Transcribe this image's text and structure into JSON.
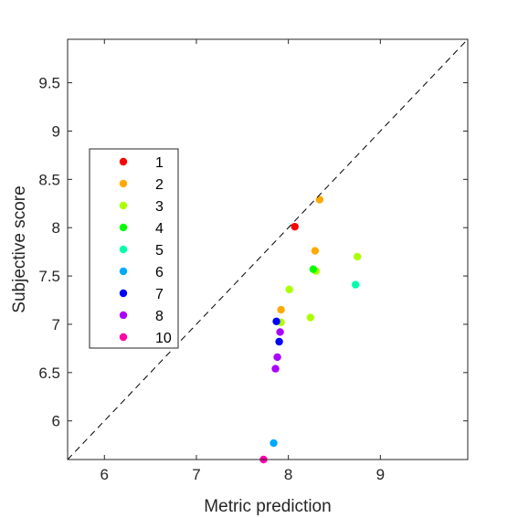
{
  "chart_data": {
    "type": "scatter",
    "xlabel": "Metric prediction",
    "ylabel": "Subjective score",
    "xlim": [
      5.6,
      9.95
    ],
    "ylim": [
      5.6,
      9.95
    ],
    "xticks": [
      6,
      7,
      8,
      9
    ],
    "yticks": [
      6,
      6.5,
      7,
      7.5,
      8,
      8.5,
      9,
      9.5
    ],
    "tick_labels_x": [
      "6",
      "7",
      "8",
      "9"
    ],
    "tick_labels_y": [
      "6",
      "6.5",
      "7",
      "7.5",
      "8",
      "8.5",
      "9",
      "9.5"
    ],
    "grid": false,
    "reference_line": "y = x (dashed)",
    "legend_position": "left",
    "series": [
      {
        "name": "1",
        "color": "#ff0000",
        "points": [
          [
            8.07,
            8.01
          ]
        ]
      },
      {
        "name": "2",
        "color": "#ffaa00",
        "points": [
          [
            8.34,
            8.29
          ],
          [
            8.29,
            7.76
          ],
          [
            7.92,
            7.15
          ]
        ]
      },
      {
        "name": "3",
        "color": "#aaff00",
        "points": [
          [
            8.75,
            7.7
          ],
          [
            8.3,
            7.55
          ],
          [
            8.01,
            7.36
          ],
          [
            8.24,
            7.07
          ],
          [
            7.92,
            7.02
          ]
        ]
      },
      {
        "name": "4",
        "color": "#00ff00",
        "points": [
          [
            8.27,
            7.57
          ]
        ]
      },
      {
        "name": "5",
        "color": "#00ffaa",
        "points": [
          [
            8.73,
            7.41
          ]
        ]
      },
      {
        "name": "6",
        "color": "#00aaff",
        "points": [
          [
            7.84,
            5.77
          ]
        ]
      },
      {
        "name": "7",
        "color": "#0000ff",
        "points": [
          [
            7.87,
            7.03
          ],
          [
            7.9,
            6.82
          ]
        ]
      },
      {
        "name": "8",
        "color": "#aa00ff",
        "points": [
          [
            7.91,
            6.92
          ],
          [
            7.88,
            6.66
          ],
          [
            7.86,
            6.54
          ]
        ]
      },
      {
        "name": "10",
        "color": "#ff00aa",
        "points": [
          [
            7.73,
            5.6
          ]
        ]
      }
    ]
  }
}
